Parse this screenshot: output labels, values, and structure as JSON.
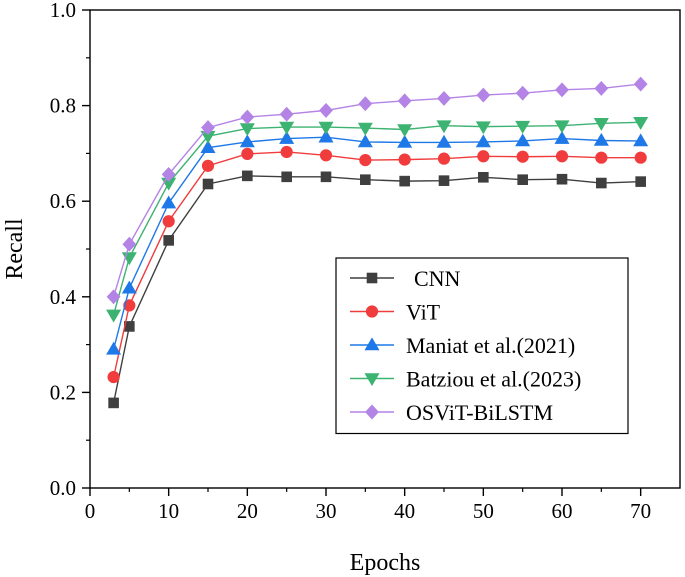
{
  "chart_data": {
    "type": "line",
    "title": "",
    "xlabel": "Epochs",
    "ylabel": "Recall",
    "xlim": [
      0,
      75
    ],
    "ylim": [
      0.0,
      1.0
    ],
    "xticks": [
      0,
      10,
      20,
      30,
      40,
      50,
      60,
      70
    ],
    "xtick_labels": [
      "0",
      "10",
      "20",
      "30",
      "40",
      "50",
      "60",
      "70"
    ],
    "yticks": [
      0.0,
      0.2,
      0.4,
      0.6,
      0.8,
      1.0
    ],
    "ytick_labels": [
      "0.0",
      "0.2",
      "0.4",
      "0.6",
      "0.8",
      "1.0"
    ],
    "grid": false,
    "legend_position": "bottom-right",
    "x": [
      3,
      5,
      10,
      15,
      20,
      25,
      30,
      35,
      40,
      45,
      50,
      55,
      60,
      65,
      70
    ],
    "series": [
      {
        "name": "CNN",
        "color": "#3f3f3f",
        "marker": "square",
        "values": [
          0.178,
          0.338,
          0.518,
          0.636,
          0.653,
          0.651,
          0.651,
          0.645,
          0.642,
          0.643,
          0.65,
          0.645,
          0.646,
          0.638,
          0.641
        ]
      },
      {
        "name": "ViT",
        "color": "#f03c3c",
        "marker": "circle",
        "values": [
          0.232,
          0.382,
          0.558,
          0.674,
          0.699,
          0.703,
          0.696,
          0.686,
          0.687,
          0.689,
          0.694,
          0.693,
          0.694,
          0.691,
          0.691
        ]
      },
      {
        "name": "Maniat et al.(2021)",
        "color": "#1f78e8",
        "marker": "triangle-up",
        "values": [
          0.29,
          0.418,
          0.596,
          0.712,
          0.724,
          0.731,
          0.734,
          0.724,
          0.723,
          0.723,
          0.724,
          0.726,
          0.731,
          0.727,
          0.726
        ]
      },
      {
        "name": "Batziou et al.(2023)",
        "color": "#3cb371",
        "marker": "triangle-down",
        "values": [
          0.362,
          0.482,
          0.638,
          0.736,
          0.752,
          0.755,
          0.755,
          0.753,
          0.75,
          0.758,
          0.756,
          0.757,
          0.758,
          0.763,
          0.765
        ]
      },
      {
        "name": "OSViT-BiLSTM",
        "color": "#b383e6",
        "marker": "diamond",
        "values": [
          0.4,
          0.51,
          0.656,
          0.754,
          0.776,
          0.782,
          0.79,
          0.804,
          0.81,
          0.815,
          0.822,
          0.826,
          0.833,
          0.836,
          0.845
        ]
      }
    ]
  }
}
